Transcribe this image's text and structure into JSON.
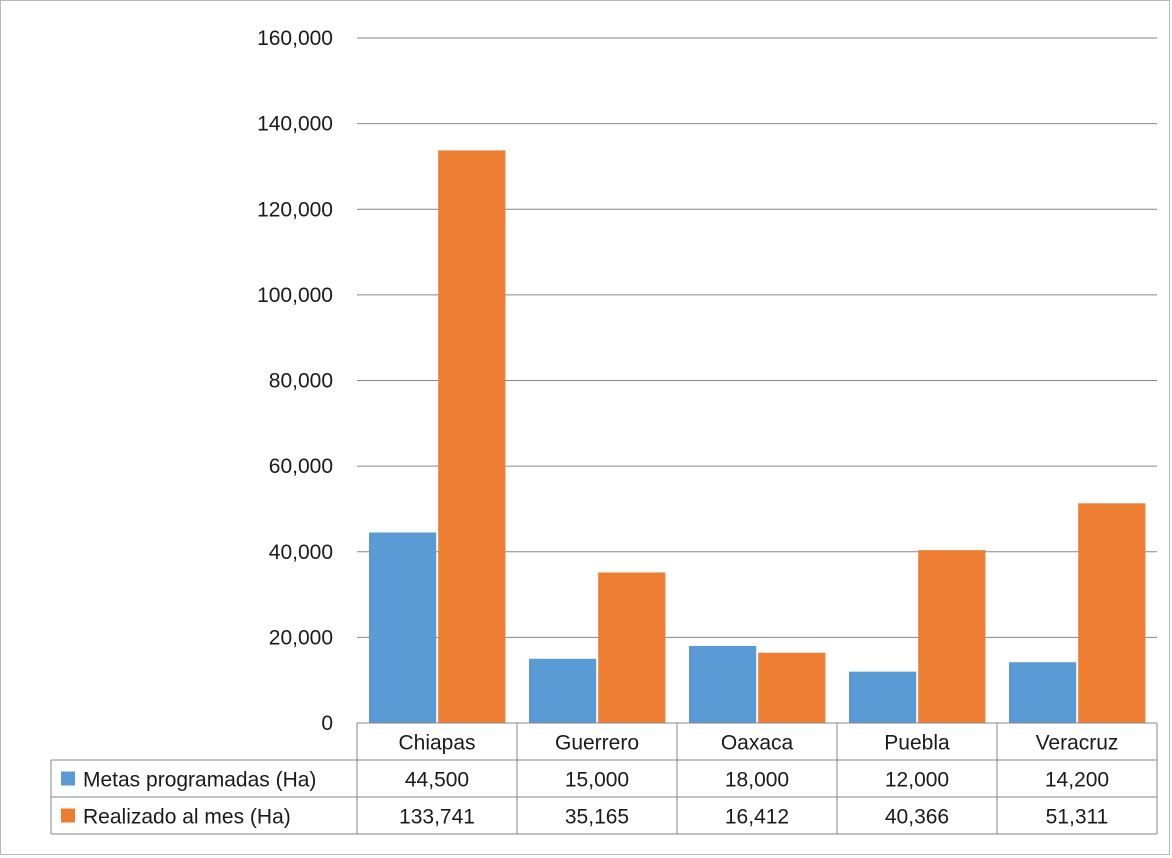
{
  "chart_data": {
    "type": "bar",
    "categories": [
      "Chiapas",
      "Guerrero",
      "Oaxaca",
      "Puebla",
      "Veracruz"
    ],
    "series": [
      {
        "name": "Metas programadas (Ha)",
        "color": "#5B9BD5",
        "values": [
          44500,
          15000,
          18000,
          12000,
          14200
        ],
        "labels": [
          "44,500",
          "15,000",
          "18,000",
          "12,000",
          "14,200"
        ]
      },
      {
        "name": "Realizado al mes (Ha)",
        "color": "#ED7D31",
        "values": [
          133741,
          35165,
          16412,
          40366,
          51311
        ],
        "labels": [
          "133,741",
          "35,165",
          "16,412",
          "40,366",
          "51,311"
        ]
      }
    ],
    "ylim": [
      0,
      160000
    ],
    "yticks": [
      0,
      20000,
      40000,
      60000,
      80000,
      100000,
      120000,
      140000,
      160000
    ],
    "ytick_labels": [
      "0",
      "20,000",
      "40,000",
      "60,000",
      "80,000",
      "100,000",
      "120,000",
      "140,000",
      "160,000"
    ],
    "grid": true,
    "legend": "data-table"
  }
}
